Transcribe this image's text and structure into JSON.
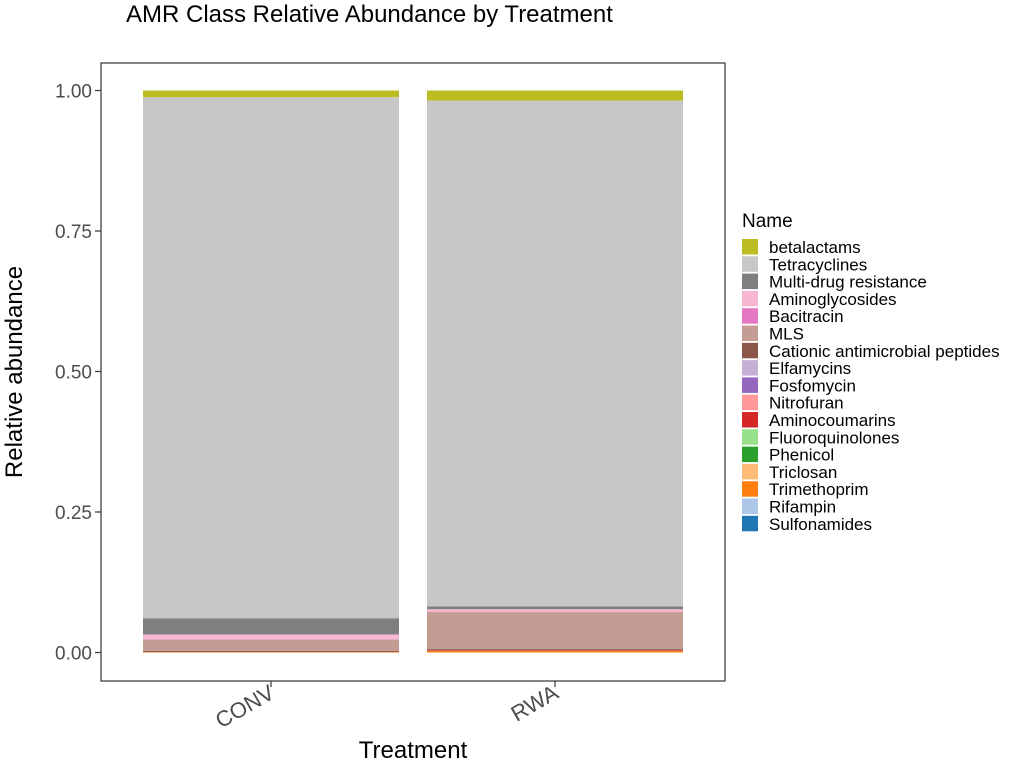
{
  "chart_data": {
    "type": "bar",
    "stacked": true,
    "title": "AMR Class Relative Abundance by Treatment",
    "xlabel": "Treatment",
    "ylabel": "Relative abundance",
    "ylim": [
      0,
      1.05
    ],
    "yticks": [
      "0.00",
      "0.25",
      "0.50",
      "0.75",
      "1.00"
    ],
    "categories": [
      "CONV",
      "RWA"
    ],
    "legend_title": "Name",
    "legend_position": "right",
    "grid": false,
    "series": [
      {
        "name": "betalactams",
        "color": "#bcbd22",
        "values": [
          0.012,
          0.018
        ]
      },
      {
        "name": "Tetracyclines",
        "color": "#c7c7c7",
        "values": [
          0.927,
          0.9
        ]
      },
      {
        "name": "Multi-drug resistance",
        "color": "#7f7f7f",
        "values": [
          0.029,
          0.005
        ]
      },
      {
        "name": "Aminoglycosides",
        "color": "#f7b6d2",
        "values": [
          0.009,
          0.005
        ]
      },
      {
        "name": "Bacitracin",
        "color": "#e377c2",
        "values": [
          0.0,
          0.0
        ]
      },
      {
        "name": "MLS",
        "color": "#c49c94",
        "values": [
          0.02,
          0.066
        ]
      },
      {
        "name": "Cationic antimicrobial peptides",
        "color": "#8c564b",
        "values": [
          0.002,
          0.002
        ]
      },
      {
        "name": "Elfamycins",
        "color": "#c5b0d5",
        "values": [
          0.0,
          0.0
        ]
      },
      {
        "name": "Fosfomycin",
        "color": "#9467bd",
        "values": [
          0.0,
          0.0
        ]
      },
      {
        "name": "Nitrofuran",
        "color": "#ff9896",
        "values": [
          0.0,
          0.0
        ]
      },
      {
        "name": "Aminocoumarins",
        "color": "#d62728",
        "values": [
          0.0,
          0.001
        ]
      },
      {
        "name": "Fluoroquinolones",
        "color": "#98df8a",
        "values": [
          0.0,
          0.0
        ]
      },
      {
        "name": "Phenicol",
        "color": "#2ca02c",
        "values": [
          0.0,
          0.0
        ]
      },
      {
        "name": "Triclosan",
        "color": "#ffbb78",
        "values": [
          0.0,
          0.0
        ]
      },
      {
        "name": "Trimethoprim",
        "color": "#ff7f0e",
        "values": [
          0.001,
          0.003
        ]
      },
      {
        "name": "Rifampin",
        "color": "#aec7e8",
        "values": [
          0.0,
          0.0
        ]
      },
      {
        "name": "Sulfonamides",
        "color": "#1f77b4",
        "values": [
          0.0,
          0.0
        ]
      }
    ]
  }
}
